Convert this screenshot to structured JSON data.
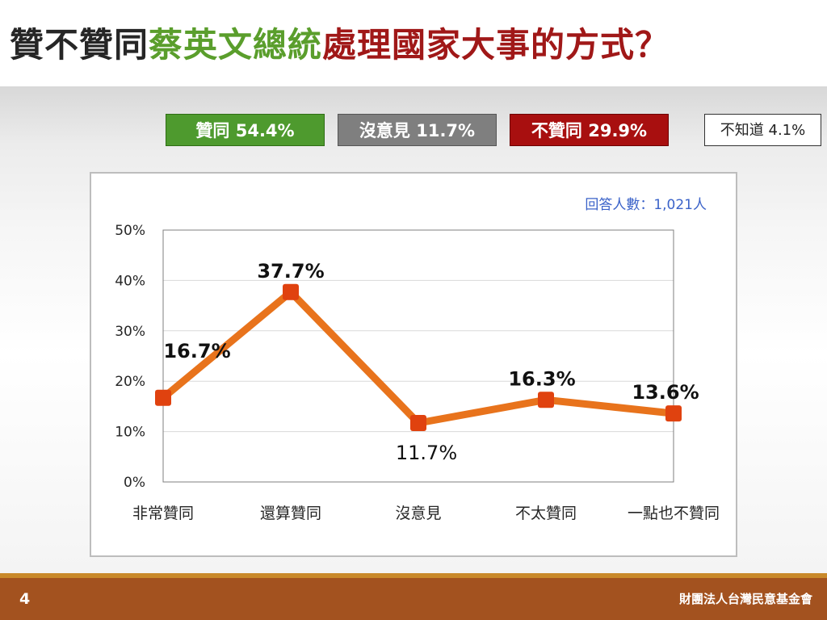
{
  "title": {
    "part1": "贊不贊同",
    "part2": "蔡英文總統",
    "part3": "處理國家大事的方式？"
  },
  "legend": {
    "agree": "贊同 54.4%",
    "neutral": "沒意見 11.7%",
    "disagree": "不贊同 29.9%",
    "dont_know": "不知道 4.1%"
  },
  "respondents": "回答人數：1,021人",
  "footer": {
    "page_number": "4",
    "organization": "財團法人台灣民意基金會"
  },
  "colors": {
    "line": "#e8731c",
    "marker": "#e0420f",
    "agree": "#4e9a2e",
    "neutral": "#7f7f7f",
    "disagree": "#a80f0f",
    "respondents": "#3b63c9"
  },
  "chart_data": {
    "type": "line",
    "categories": [
      "非常贊同",
      "還算贊同",
      "沒意見",
      "不太贊同",
      "一點也不贊同"
    ],
    "series": [
      {
        "values": [
          16.7,
          37.7,
          11.7,
          16.3,
          13.6
        ]
      }
    ],
    "data_labels": [
      "16.7%",
      "37.7%",
      "11.7%",
      "16.3%",
      "13.6%"
    ],
    "ylim": [
      0,
      50
    ],
    "yticks": [
      0,
      10,
      20,
      30,
      40,
      50
    ],
    "ytick_labels": [
      "0%",
      "10%",
      "20%",
      "30%",
      "40%",
      "50%"
    ],
    "grid": true,
    "title": "",
    "xlabel": "",
    "ylabel": ""
  }
}
